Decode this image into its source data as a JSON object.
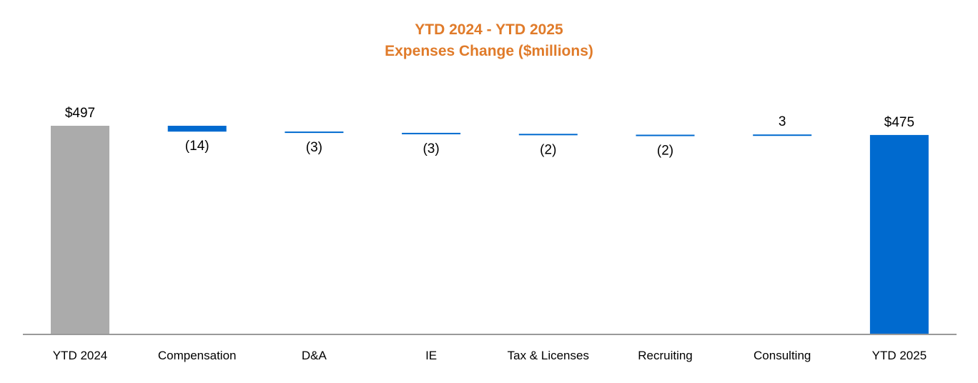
{
  "chart_data": {
    "type": "waterfall",
    "title": "YTD 2024 - YTD 2025",
    "subtitle": "Expenses Change ($millions)",
    "xlabel": "",
    "ylabel": "",
    "categories": [
      "YTD 2024",
      "Compensation",
      "D&A",
      "IE",
      "Tax & Licenses",
      "Recruiting",
      "Consulting",
      "YTD 2025"
    ],
    "values": [
      497,
      -14,
      -3,
      -3,
      -2,
      -2,
      3,
      475
    ],
    "kinds": [
      "total",
      "delta",
      "delta",
      "delta",
      "delta",
      "delta",
      "delta",
      "total"
    ],
    "data_labels": [
      "$497",
      "(14)",
      "(3)",
      "(3)",
      "(2)",
      "(2)",
      "3",
      "$475"
    ],
    "ylim": [
      0,
      497
    ],
    "grid": false,
    "legend": "none"
  },
  "colors": {
    "title": "#E07B2A",
    "start_total": "#ABABAB",
    "end_total": "#006ACF",
    "delta": "#006ACF",
    "axis": "#999999"
  }
}
